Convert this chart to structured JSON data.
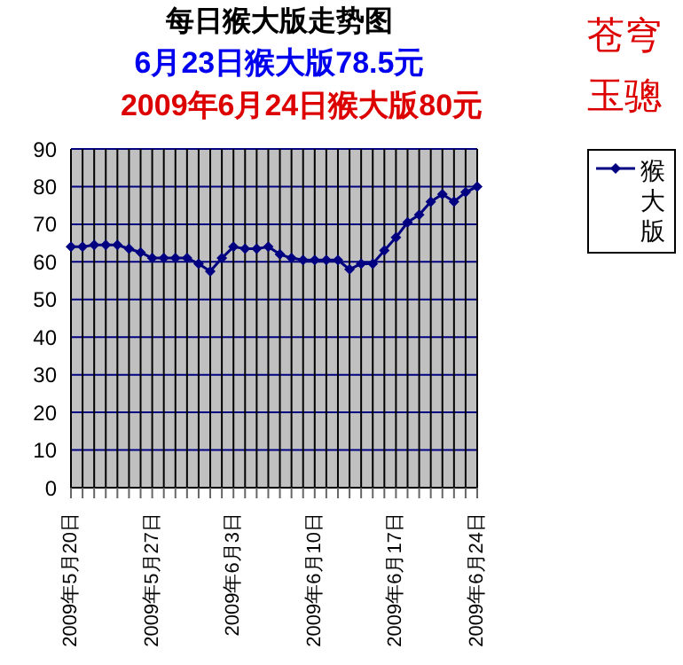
{
  "chart_data": {
    "type": "line",
    "title": "每日猴大版走势图",
    "subtitle": "6月23日猴大版78.5元",
    "annotations": [
      "2009年6月24日猴大版80元",
      "苍穹",
      "玉骢"
    ],
    "categories": [
      "2009年5月20日",
      null,
      null,
      null,
      null,
      null,
      null,
      "2009年5月27日",
      null,
      null,
      null,
      null,
      null,
      null,
      "2009年6月3日",
      null,
      null,
      null,
      null,
      null,
      null,
      "2009年6月10日",
      null,
      null,
      null,
      null,
      null,
      null,
      "2009年6月17日",
      null,
      null,
      null,
      null,
      null,
      null,
      "2009年6月24日"
    ],
    "series": [
      {
        "name": "猴大版",
        "color": "#000080",
        "values": [
          64,
          64,
          64.5,
          64.5,
          64.5,
          63.5,
          62.5,
          61,
          61,
          61,
          61,
          59.5,
          57.5,
          61,
          64,
          63.5,
          63.5,
          64,
          62,
          61,
          60.5,
          60.5,
          60.5,
          60.5,
          58,
          59.5,
          59.5,
          63,
          66.5,
          70.5,
          72.5,
          76,
          78,
          76,
          78.5,
          80
        ]
      }
    ],
    "ylim": [
      0,
      90
    ],
    "yticks": [
      0,
      10,
      20,
      30,
      40,
      50,
      60,
      70,
      80,
      90
    ],
    "grid": true,
    "legend": "top right",
    "marker": "diamond",
    "line_style": "solid"
  }
}
